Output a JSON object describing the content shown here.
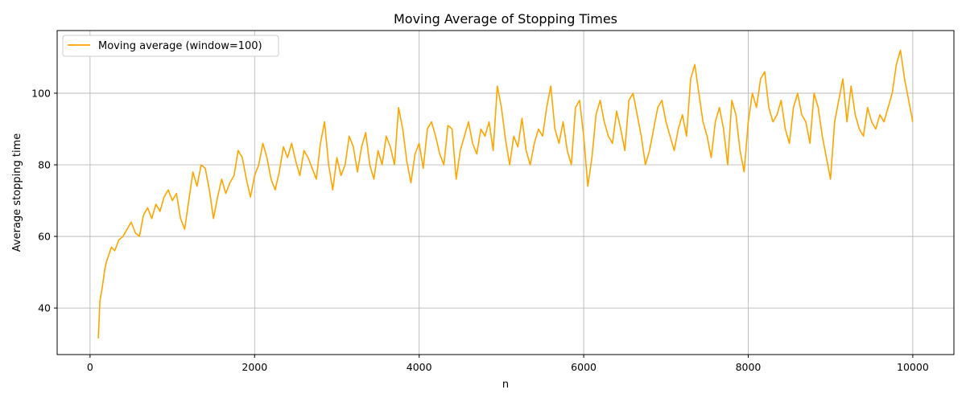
{
  "chart_data": {
    "type": "line",
    "title": "Moving Average of Stopping Times",
    "xlabel": "n",
    "ylabel": "Average stopping time",
    "xlim": [
      -400,
      10500
    ],
    "ylim": [
      27,
      117.5
    ],
    "xticks": [
      0,
      2000,
      4000,
      6000,
      8000,
      10000
    ],
    "yticks": [
      40,
      60,
      80,
      100
    ],
    "xtick_labels": [
      "0",
      "2000",
      "4000",
      "6000",
      "8000",
      "10000"
    ],
    "ytick_labels": [
      "40",
      "60",
      "80",
      "100"
    ],
    "grid": true,
    "legend_position": "upper-left",
    "series": [
      {
        "name": "Moving average (window=100)",
        "color": "#FFA500",
        "x": [
          100,
          120,
          150,
          180,
          200,
          230,
          260,
          300,
          350,
          400,
          450,
          500,
          550,
          600,
          650,
          700,
          750,
          800,
          850,
          900,
          950,
          1000,
          1050,
          1100,
          1150,
          1200,
          1250,
          1300,
          1350,
          1400,
          1450,
          1500,
          1550,
          1600,
          1650,
          1700,
          1750,
          1800,
          1850,
          1900,
          1950,
          2000,
          2050,
          2100,
          2150,
          2200,
          2250,
          2300,
          2350,
          2400,
          2450,
          2500,
          2550,
          2600,
          2650,
          2700,
          2750,
          2800,
          2850,
          2900,
          2950,
          3000,
          3050,
          3100,
          3150,
          3200,
          3250,
          3300,
          3350,
          3400,
          3450,
          3500,
          3550,
          3600,
          3650,
          3700,
          3750,
          3800,
          3850,
          3900,
          3950,
          4000,
          4050,
          4100,
          4150,
          4200,
          4250,
          4300,
          4350,
          4400,
          4450,
          4500,
          4550,
          4600,
          4650,
          4700,
          4750,
          4800,
          4850,
          4900,
          4950,
          5000,
          5050,
          5100,
          5150,
          5200,
          5250,
          5300,
          5350,
          5400,
          5450,
          5500,
          5550,
          5600,
          5650,
          5700,
          5750,
          5800,
          5850,
          5900,
          5950,
          6000,
          6050,
          6100,
          6150,
          6200,
          6250,
          6300,
          6350,
          6400,
          6450,
          6500,
          6550,
          6600,
          6650,
          6700,
          6750,
          6800,
          6850,
          6900,
          6950,
          7000,
          7050,
          7100,
          7150,
          7200,
          7250,
          7300,
          7350,
          7400,
          7450,
          7500,
          7550,
          7600,
          7650,
          7700,
          7750,
          7800,
          7850,
          7900,
          7950,
          8000,
          8050,
          8100,
          8150,
          8200,
          8250,
          8300,
          8350,
          8400,
          8450,
          8500,
          8550,
          8600,
          8650,
          8700,
          8750,
          8800,
          8850,
          8900,
          8950,
          9000,
          9050,
          9100,
          9150,
          9200,
          9250,
          9300,
          9350,
          9400,
          9450,
          9500,
          9550,
          9600,
          9650,
          9700,
          9750,
          9800,
          9850,
          9900,
          9950,
          10000
        ],
        "y": [
          31.5,
          42,
          46,
          51,
          53,
          55,
          57,
          56,
          59,
          60,
          62,
          64,
          61,
          60,
          66,
          68,
          65,
          69,
          67,
          71,
          73,
          70,
          72,
          65,
          62,
          70,
          78,
          74,
          80,
          79,
          73,
          65,
          71,
          76,
          72,
          75,
          77,
          84,
          82,
          76,
          71,
          77,
          80,
          86,
          82,
          76,
          73,
          78,
          85,
          82,
          86,
          81,
          77,
          84,
          82,
          79,
          76,
          86,
          92,
          80,
          73,
          82,
          77,
          80,
          88,
          85,
          78,
          85,
          89,
          80,
          76,
          84,
          80,
          88,
          85,
          80,
          96,
          90,
          81,
          75,
          83,
          86,
          79,
          90,
          92,
          88,
          83,
          80,
          91,
          90,
          76,
          84,
          88,
          92,
          86,
          83,
          90,
          88,
          92,
          84,
          102,
          96,
          87,
          80,
          88,
          85,
          93,
          84,
          80,
          86,
          90,
          88,
          96,
          102,
          90,
          86,
          92,
          84,
          80,
          96,
          98,
          88,
          74,
          82,
          94,
          98,
          92,
          88,
          86,
          95,
          90,
          84,
          98,
          100,
          94,
          88,
          80,
          84,
          90,
          96,
          98,
          92,
          88,
          84,
          90,
          94,
          88,
          104,
          108,
          100,
          92,
          88,
          82,
          92,
          96,
          90,
          80,
          98,
          94,
          84,
          78,
          92,
          100,
          96,
          104,
          106,
          96,
          92,
          94,
          98,
          90,
          86,
          96,
          100,
          94,
          92,
          86,
          100,
          96,
          88,
          82,
          76,
          92,
          98,
          104,
          92,
          102,
          94,
          90,
          88,
          96,
          92,
          90,
          94,
          92,
          96,
          100,
          108,
          112,
          104,
          98,
          92
        ]
      }
    ]
  }
}
